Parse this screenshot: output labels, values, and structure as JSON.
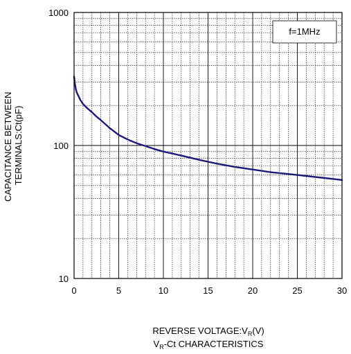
{
  "chart_data": {
    "type": "line",
    "title": "",
    "caption": {
      "prefix": "V",
      "sub": "R",
      "suffix": "-Ct CHARACTERISTICS"
    },
    "xlabel": {
      "prefix": "REVERSE VOLTAGE:V",
      "sub": "R",
      "suffix": "(V)"
    },
    "ylabel_lines": [
      "CAPACITANCE BETWEEN",
      "TERMINALS:Ct(pF)"
    ],
    "x_scale": "linear",
    "y_scale": "log",
    "xlim": [
      0,
      30
    ],
    "ylim": [
      10,
      1000
    ],
    "x_ticks": [
      0,
      5,
      10,
      15,
      20,
      25,
      30
    ],
    "x_tick_labels": [
      "0",
      "5",
      "10",
      "15",
      "20",
      "25",
      "30"
    ],
    "y_ticks": [
      10,
      100,
      1000
    ],
    "y_tick_labels": [
      "10",
      "100",
      "1000"
    ],
    "grid": true,
    "annotation": "f=1MHz",
    "annotation_position": "top-right",
    "line_color": "#1a1a7a",
    "series": [
      {
        "x": [
          0,
          0.1,
          0.2,
          0.3,
          0.5,
          0.7,
          1,
          1.5,
          2,
          2.5,
          3,
          4,
          5,
          6,
          7,
          8,
          9,
          10,
          12,
          14,
          16,
          18,
          20,
          22,
          24,
          26,
          28,
          30
        ],
        "y": [
          330,
          290,
          265,
          250,
          235,
          220,
          205,
          190,
          178,
          165,
          155,
          135,
          120,
          111,
          104,
          99,
          94,
          90,
          84,
          78,
          73,
          69,
          66,
          63,
          61,
          59,
          57,
          55
        ]
      }
    ]
  }
}
